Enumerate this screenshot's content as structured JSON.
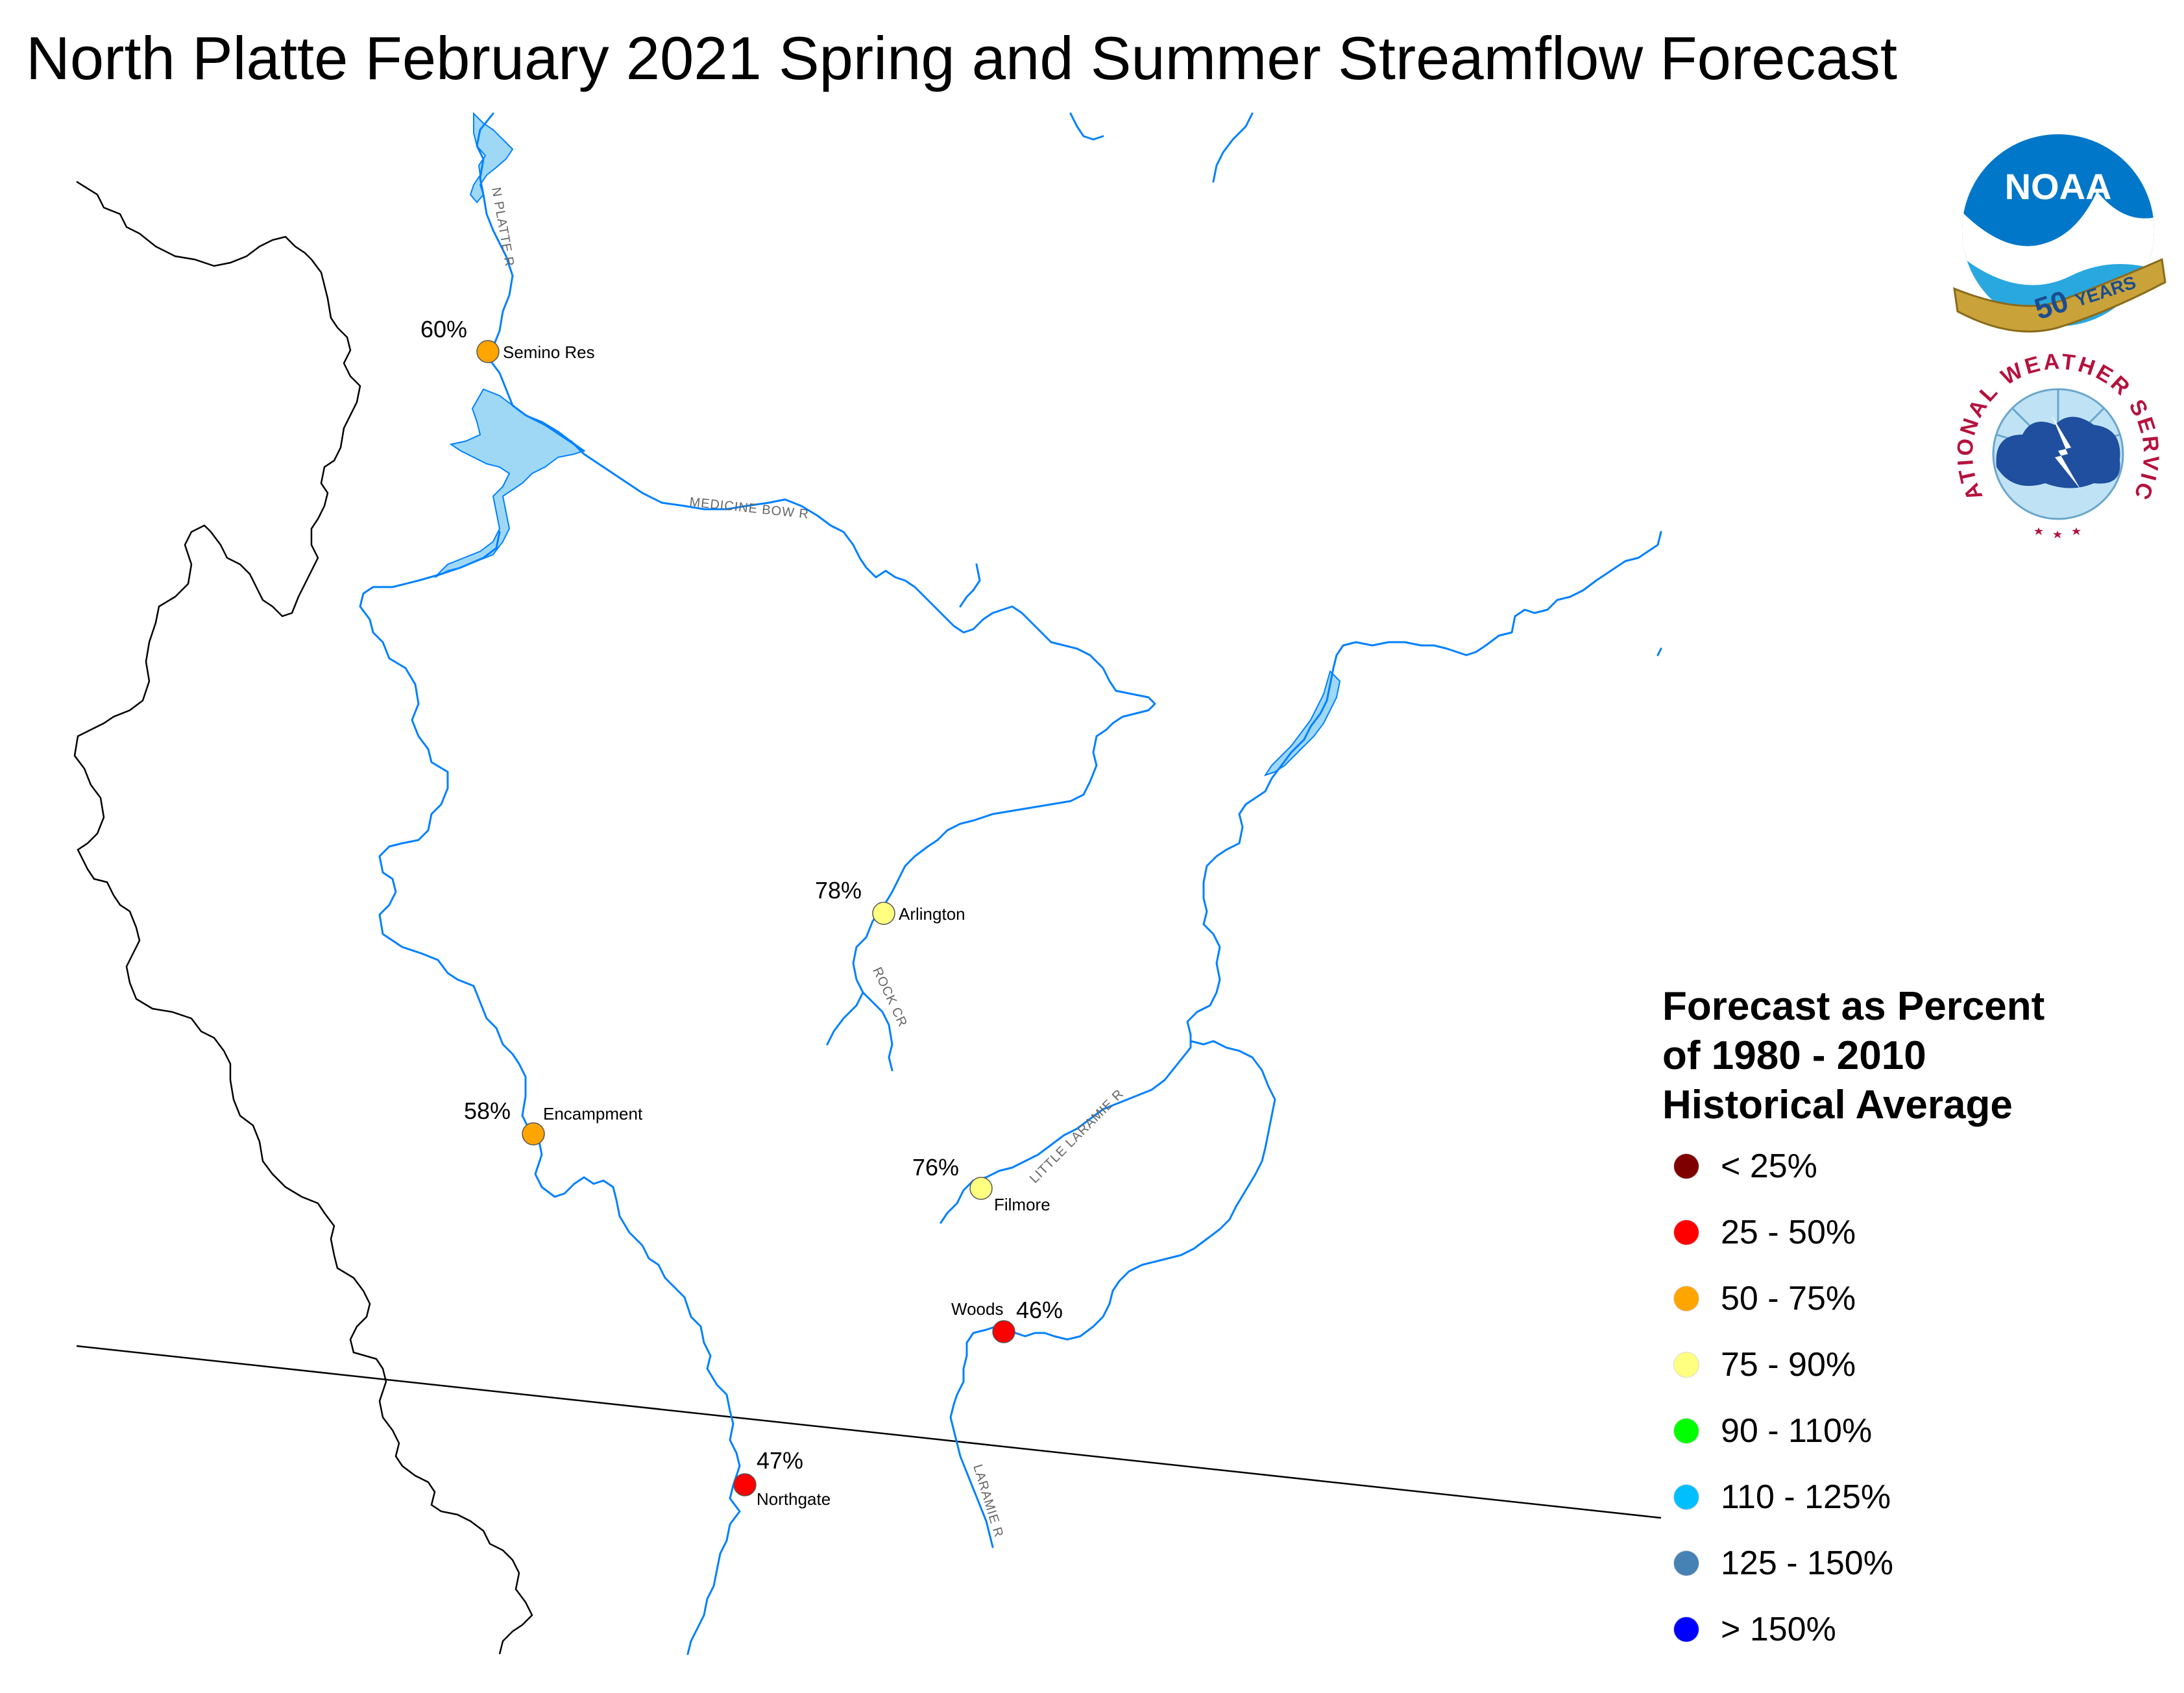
{
  "title": "North Platte February 2021 Spring and Summer Streamflow Forecast",
  "legend": {
    "title_lines": [
      "Forecast as Percent",
      "of 1980 - 2010",
      "Historical Average"
    ],
    "items": [
      {
        "label": "< 25%",
        "color": "#7f0000"
      },
      {
        "label": "25 - 50%",
        "color": "#ff0000"
      },
      {
        "label": "50 - 75%",
        "color": "#ffa500"
      },
      {
        "label": "75 - 90%",
        "color": "#ffff80"
      },
      {
        "label": "90 - 110%",
        "color": "#00ff00"
      },
      {
        "label": "110 - 125%",
        "color": "#00bfff"
      },
      {
        "label": "125 - 150%",
        "color": "#4682b4"
      },
      {
        "label": "> 150%",
        "color": "#0000ff"
      }
    ]
  },
  "stations": [
    {
      "name": "Semino Res",
      "percent": "60%",
      "color": "#ffa500"
    },
    {
      "name": "Arlington",
      "percent": "78%",
      "color": "#ffff80"
    },
    {
      "name": "Encampment",
      "percent": "58%",
      "color": "#ffa500"
    },
    {
      "name": "Filmore",
      "percent": "76%",
      "color": "#ffff80"
    },
    {
      "name": "Woods",
      "percent": "46%",
      "color": "#ff0000"
    },
    {
      "name": "Northgate",
      "percent": "47%",
      "color": "#ff0000"
    }
  ],
  "rivers": {
    "n_platte": "N PLATTE R",
    "medicine_bow": "MEDICINE BOW R",
    "rock_cr": "ROCK CR",
    "little_laramie": "LITTLE LARAMIE R",
    "laramie": "LARAMIE R"
  },
  "logos": {
    "noaa": "NOAA",
    "noaa_years_num": "50",
    "noaa_years_word": "YEARS",
    "nws": "NATIONAL WEATHER SERVICE"
  },
  "colors": {
    "river": "#0080ff",
    "reservoir": "#9ed8f5",
    "boundary": "#000000"
  }
}
